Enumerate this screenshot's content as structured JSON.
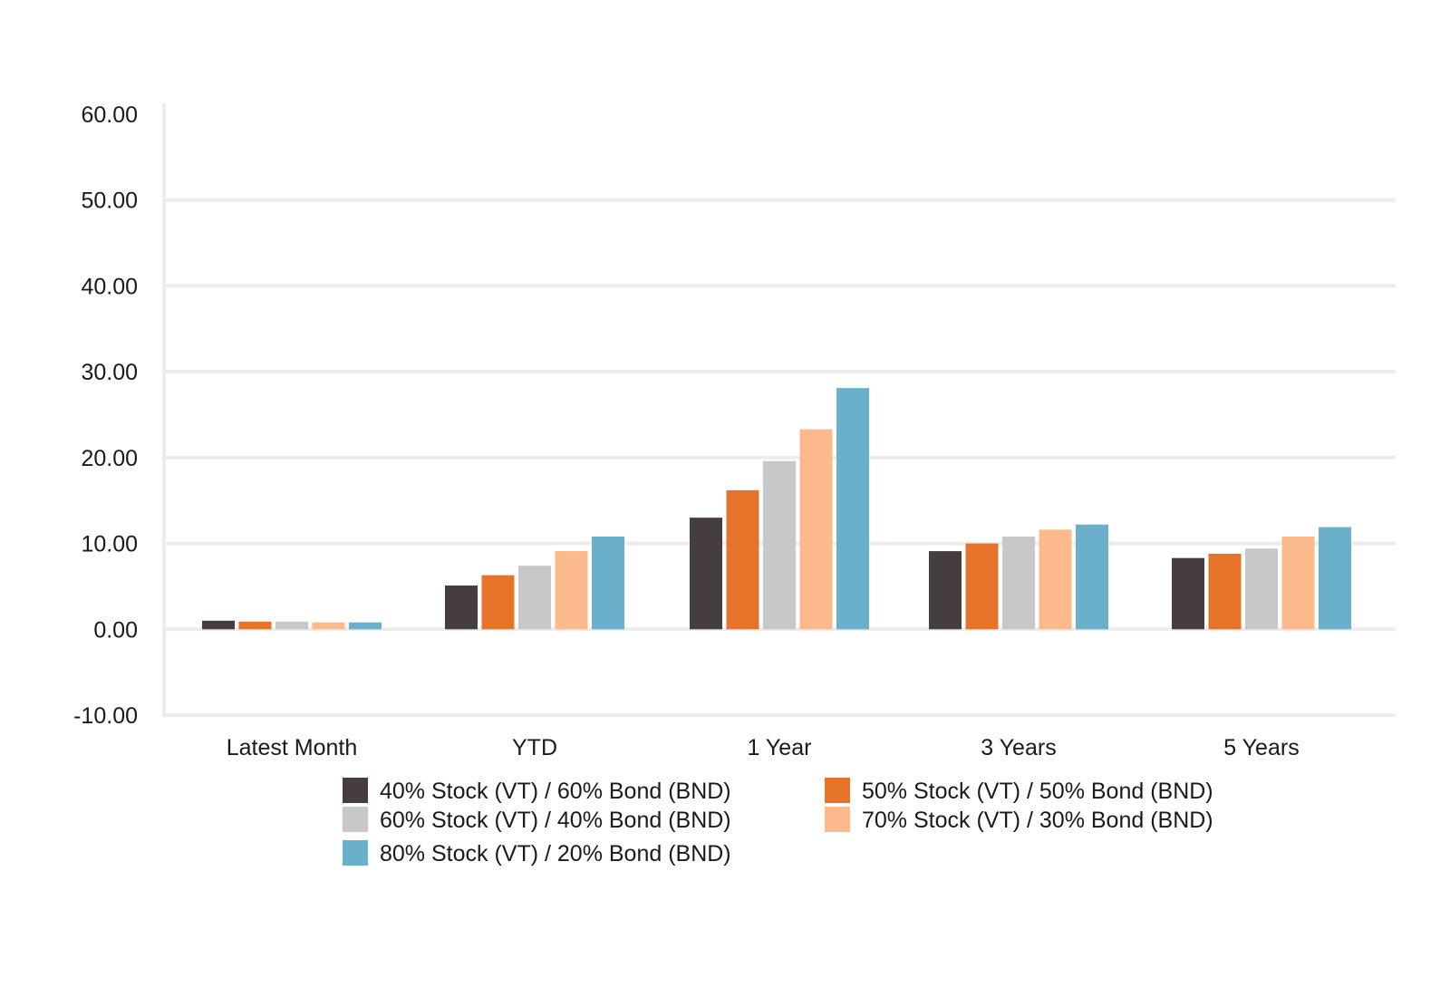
{
  "chart_data": {
    "type": "bar",
    "title": "",
    "xlabel": "",
    "ylabel": "",
    "categories": [
      "Latest Month",
      "YTD",
      "1 Year",
      "3 Years",
      "5 Years"
    ],
    "y_ticks": [
      "-10.00",
      "0.00",
      "10.00",
      "20.00",
      "30.00",
      "40.00",
      "50.00",
      "60.00"
    ],
    "ylim": [
      -10,
      60
    ],
    "grid": true,
    "legend_position": "bottom",
    "series": [
      {
        "name": "40% Stock (VT) / 60% Bond (BND)",
        "color": "#453d3e",
        "values": [
          1.0,
          5.1,
          13.0,
          9.1,
          8.3
        ]
      },
      {
        "name": "50% Stock (VT) / 50% Bond (BND)",
        "color": "#e5742a",
        "values": [
          0.9,
          6.3,
          16.2,
          10.0,
          8.8
        ]
      },
      {
        "name": "60% Stock (VT) / 40% Bond (BND)",
        "color": "#c8c8ca",
        "values": [
          0.9,
          7.4,
          19.6,
          10.8,
          9.4
        ]
      },
      {
        "name": "70% Stock (VT) / 30% Bond (BND)",
        "color": "#fbb98c",
        "values": [
          0.8,
          9.1,
          23.3,
          11.6,
          10.8
        ]
      },
      {
        "name": "80% Stock (VT) / 20% Bond (BND)",
        "color": "#6ab0cb",
        "values": [
          0.8,
          10.8,
          28.1,
          12.2,
          11.9
        ]
      }
    ]
  }
}
